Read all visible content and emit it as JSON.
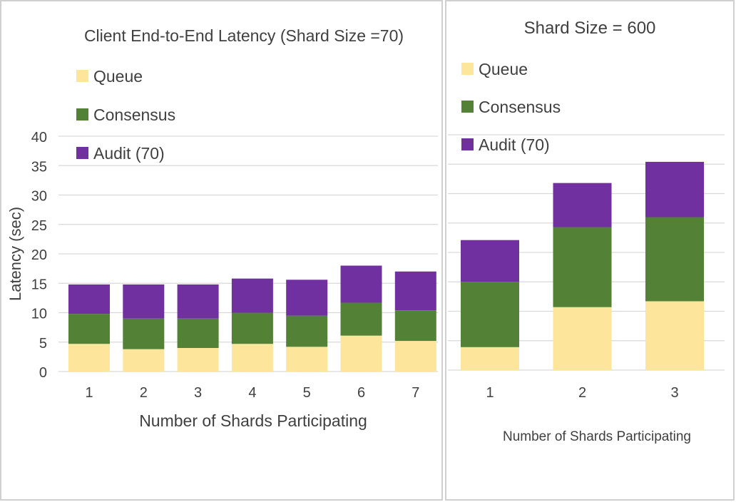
{
  "chart_data": [
    {
      "type": "bar",
      "stacked": true,
      "title": "Client End-to-End Latency (Shard Size =70)",
      "xlabel": "Number of Shards Participating",
      "ylabel": "Latency (sec)",
      "ylim": [
        0,
        40
      ],
      "yticks": [
        "0",
        "5",
        "10",
        "15",
        "20",
        "25",
        "30",
        "35",
        "40"
      ],
      "grid": true,
      "legend_position": "top-left",
      "categories": [
        "1",
        "2",
        "3",
        "4",
        "5",
        "6",
        "7"
      ],
      "series": [
        {
          "name": "Queue",
          "color": "#FDE59B",
          "values": [
            4.7,
            3.8,
            4.0,
            4.7,
            4.2,
            6.1,
            5.2
          ]
        },
        {
          "name": "Consensus",
          "color": "#538135",
          "values": [
            5.1,
            5.2,
            5.0,
            5.3,
            5.3,
            5.6,
            5.2
          ]
        },
        {
          "name": "Audit (70)",
          "color": "#7030A0",
          "values": [
            5.0,
            5.8,
            5.8,
            5.8,
            6.1,
            6.3,
            6.6
          ]
        }
      ]
    },
    {
      "type": "bar",
      "stacked": true,
      "title": "Shard Size = 600",
      "xlabel": "Number of Shards Participating",
      "ylabel": "",
      "ylim": [
        0,
        40
      ],
      "grid": true,
      "legend_position": "top-left",
      "categories": [
        "1",
        "2",
        "3"
      ],
      "series": [
        {
          "name": "Queue",
          "color": "#FDE59B",
          "values": [
            3.9,
            10.7,
            11.7
          ]
        },
        {
          "name": "Consensus",
          "color": "#538135",
          "values": [
            11.1,
            13.6,
            14.3
          ]
        },
        {
          "name": "Audit (70)",
          "color": "#7030A0",
          "values": [
            7.1,
            7.5,
            9.4
          ]
        }
      ]
    }
  ]
}
